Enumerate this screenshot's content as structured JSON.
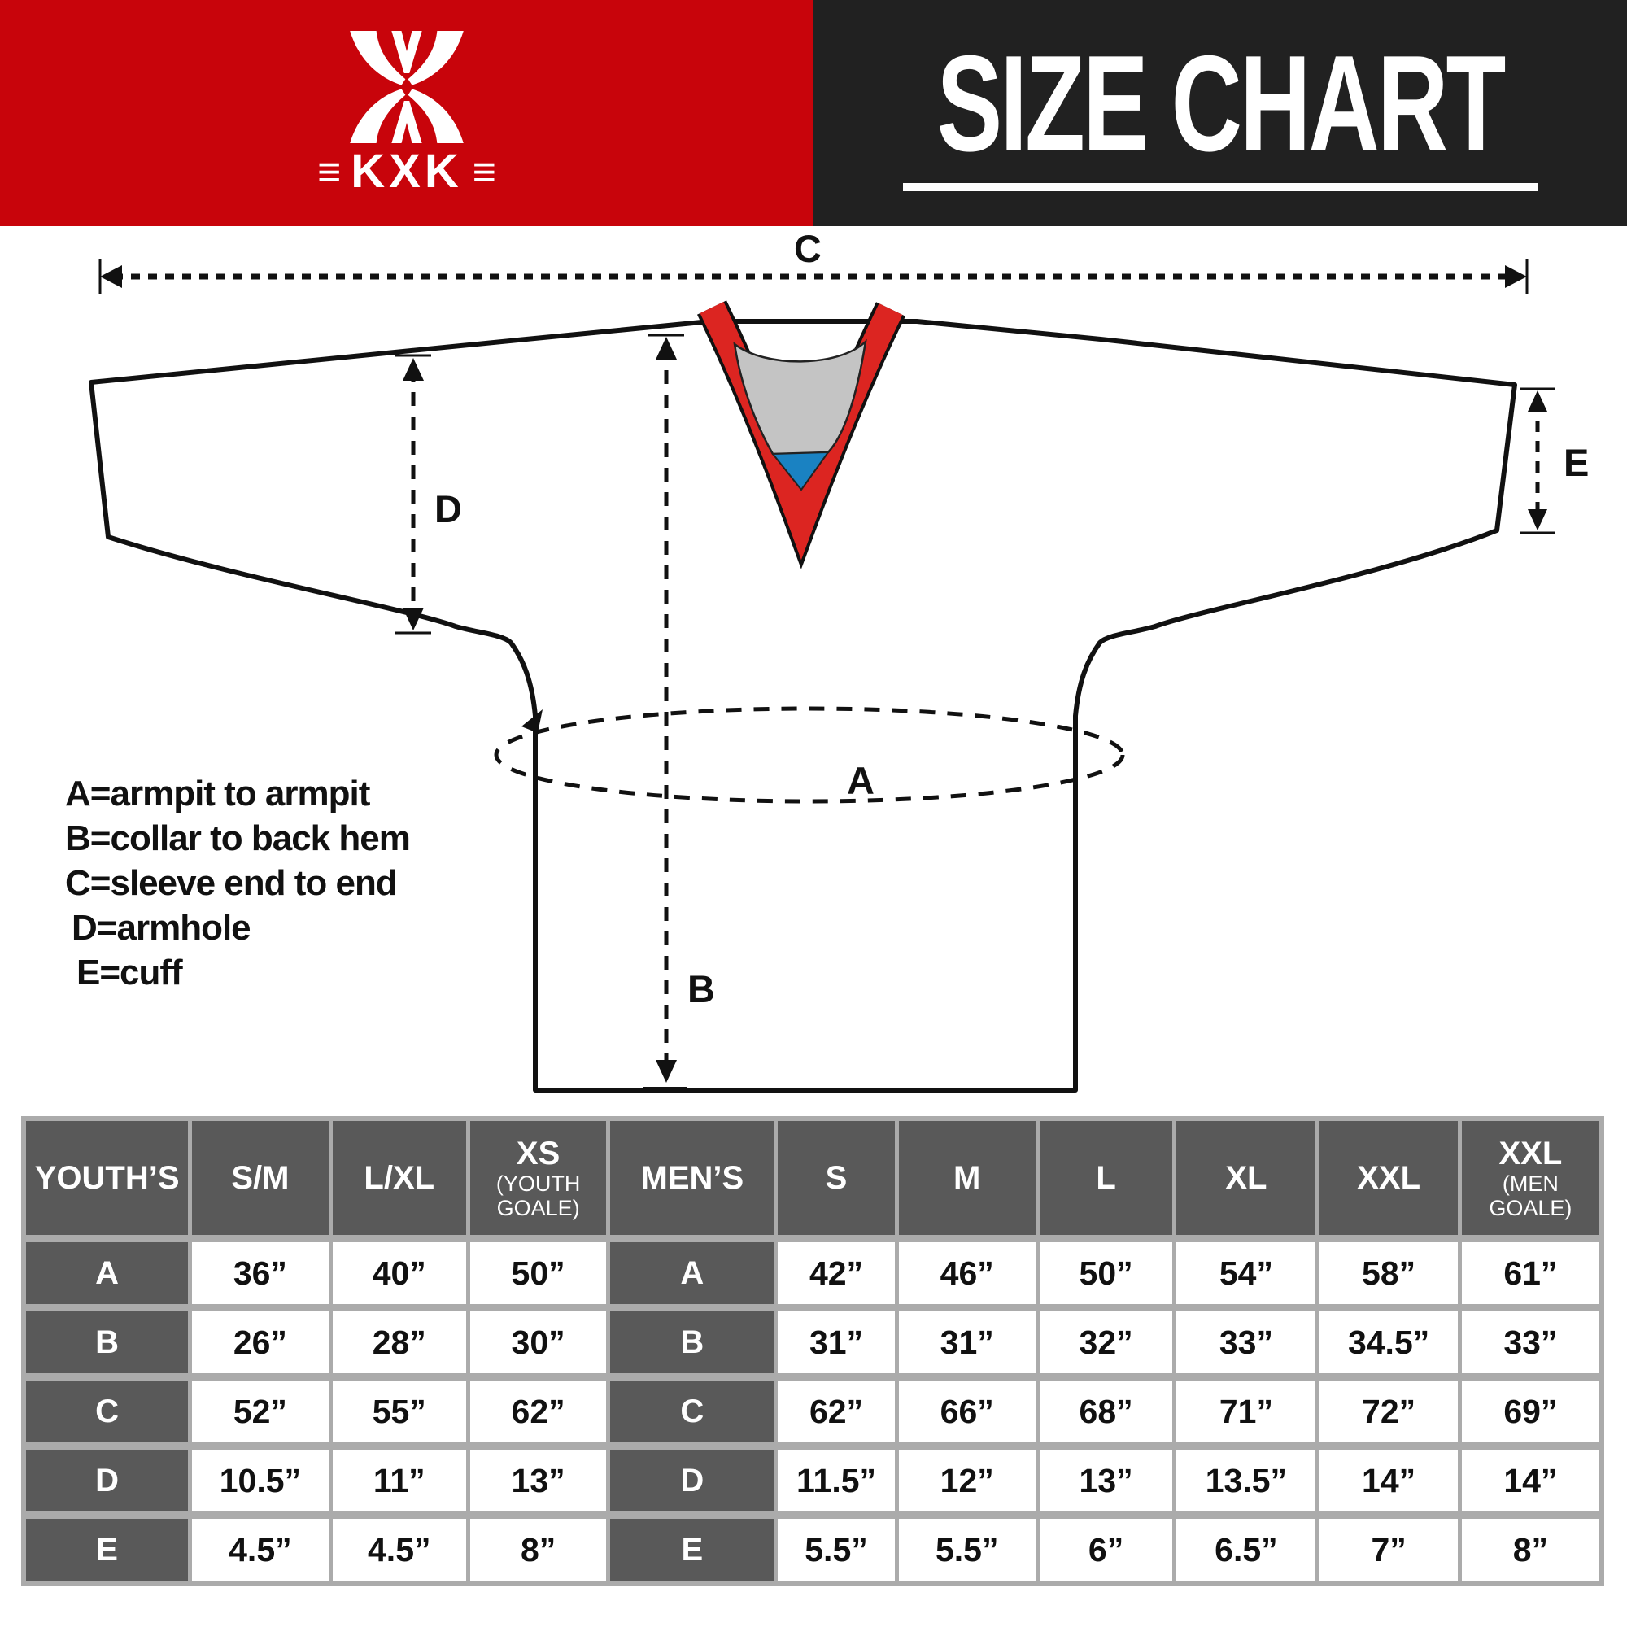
{
  "header": {
    "brand": {
      "name": "KXK",
      "bars": "≡"
    },
    "title": "SIZE CHART",
    "colors": {
      "brand_bg": "#C8040B",
      "title_bg": "#212121"
    }
  },
  "diagram": {
    "measure_labels": {
      "A": "A",
      "B": "B",
      "C": "C",
      "D": "D",
      "E": "E"
    },
    "legend": [
      "A=armpit to armpit",
      "B=collar to back hem",
      "C=sleeve end to end",
      "D=armhole",
      "E=cuff"
    ],
    "colors": {
      "collar_red": "#DC2521",
      "inner_gray": "#C4C4C4",
      "insert_blue": "#1A82C2",
      "outline": "#111111"
    }
  },
  "size_table": {
    "row_labels": [
      "A",
      "B",
      "C",
      "D",
      "E"
    ],
    "sections": [
      {
        "name": "YOUTH’S",
        "columns": [
          {
            "label": "S/M",
            "sub": ""
          },
          {
            "label": "L/XL",
            "sub": ""
          },
          {
            "label": "XS",
            "sub": "(YOUTH GOALE)"
          }
        ],
        "values": [
          [
            "36”",
            "40”",
            "50”"
          ],
          [
            "26”",
            "28”",
            "30”"
          ],
          [
            "52”",
            "55”",
            "62”"
          ],
          [
            "10.5”",
            "11”",
            "13”"
          ],
          [
            "4.5”",
            "4.5”",
            "8”"
          ]
        ]
      },
      {
        "name": "MEN’S",
        "columns": [
          {
            "label": "S",
            "sub": ""
          },
          {
            "label": "M",
            "sub": ""
          },
          {
            "label": "L",
            "sub": ""
          },
          {
            "label": "XL",
            "sub": ""
          },
          {
            "label": "XXL",
            "sub": ""
          },
          {
            "label": "XXL",
            "sub": "(MEN GOALE)"
          }
        ],
        "values": [
          [
            "42”",
            "46”",
            "50”",
            "54”",
            "58”",
            "61”"
          ],
          [
            "31”",
            "31”",
            "32”",
            "33”",
            "34.5”",
            "33”"
          ],
          [
            "62”",
            "66”",
            "68”",
            "71”",
            "72”",
            "69”"
          ],
          [
            "11.5”",
            "12”",
            "13”",
            "13.5”",
            "14”",
            "14”"
          ],
          [
            "5.5”",
            "5.5”",
            "6”",
            "6.5”",
            "7”",
            "8”"
          ]
        ]
      }
    ],
    "colors": {
      "header_bg": "#595959",
      "grid": "#ABABAB",
      "cell_bg": "#FFFFFF"
    }
  }
}
